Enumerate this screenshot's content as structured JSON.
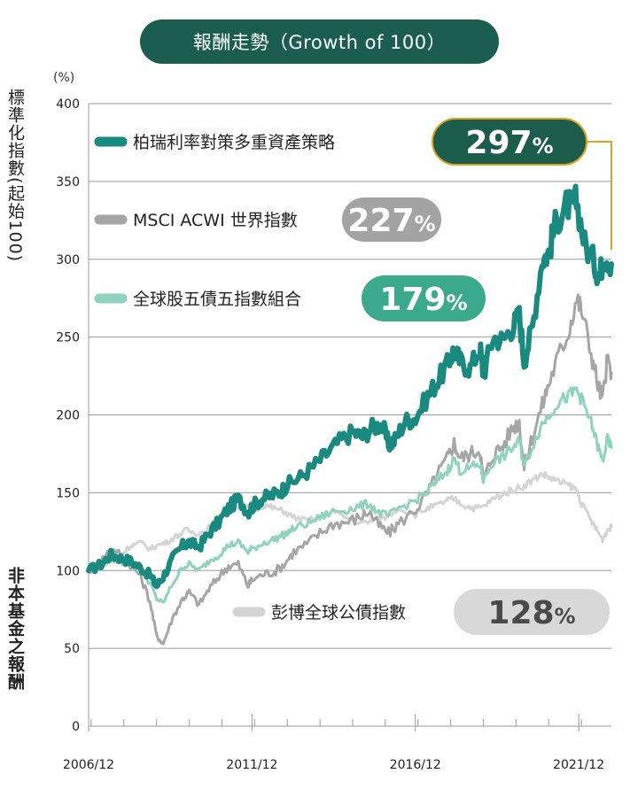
{
  "title": "報酬走勢（Growth of 100）",
  "y_unit": "(%)",
  "y_label": "標準化指數(起始100)",
  "side_note": "非本基金之報酬",
  "chart_data": {
    "type": "line",
    "title": "報酬走勢（Growth of 100）",
    "ylabel": "標準化指數(起始100)",
    "ylim": [
      0,
      400
    ],
    "yticks": [
      0,
      50,
      100,
      150,
      200,
      250,
      300,
      350,
      400
    ],
    "xlim": [
      2006.92,
      2022.92
    ],
    "xticks": [
      {
        "value": 2006.92,
        "label": "2006/12"
      },
      {
        "value": 2011.92,
        "label": "2011/12"
      },
      {
        "value": 2016.92,
        "label": "2016/12"
      },
      {
        "value": 2021.92,
        "label": "2021/12"
      }
    ],
    "grid": true,
    "legend": "inline",
    "series": [
      {
        "name": "柏瑞利率對策多重資產策略",
        "color": "#1a8a80",
        "final": "297%",
        "points": [
          [
            2006.92,
            100
          ],
          [
            2007.3,
            104
          ],
          [
            2007.6,
            110
          ],
          [
            2007.9,
            108
          ],
          [
            2008.2,
            106
          ],
          [
            2008.5,
            102
          ],
          [
            2008.8,
            97
          ],
          [
            2009.0,
            90
          ],
          [
            2009.2,
            96
          ],
          [
            2009.5,
            108
          ],
          [
            2009.8,
            116
          ],
          [
            2010.0,
            118
          ],
          [
            2010.3,
            115
          ],
          [
            2010.6,
            124
          ],
          [
            2010.9,
            131
          ],
          [
            2011.2,
            140
          ],
          [
            2011.5,
            146
          ],
          [
            2011.8,
            138
          ],
          [
            2011.92,
            141
          ],
          [
            2012.2,
            146
          ],
          [
            2012.5,
            148
          ],
          [
            2012.8,
            151
          ],
          [
            2013.0,
            155
          ],
          [
            2013.4,
            160
          ],
          [
            2013.8,
            167
          ],
          [
            2014.2,
            175
          ],
          [
            2014.6,
            183
          ],
          [
            2015.0,
            189
          ],
          [
            2015.3,
            186
          ],
          [
            2015.6,
            192
          ],
          [
            2015.9,
            194
          ],
          [
            2016.1,
            181
          ],
          [
            2016.3,
            184
          ],
          [
            2016.6,
            196
          ],
          [
            2016.92,
            198
          ],
          [
            2017.3,
            212
          ],
          [
            2017.6,
            222
          ],
          [
            2017.9,
            232
          ],
          [
            2018.1,
            242
          ],
          [
            2018.3,
            234
          ],
          [
            2018.6,
            230
          ],
          [
            2018.9,
            243
          ],
          [
            2019.0,
            226
          ],
          [
            2019.3,
            250
          ],
          [
            2019.6,
            248
          ],
          [
            2019.9,
            257
          ],
          [
            2020.1,
            264
          ],
          [
            2020.25,
            235
          ],
          [
            2020.5,
            256
          ],
          [
            2020.8,
            300
          ],
          [
            2021.0,
            304
          ],
          [
            2021.2,
            322
          ],
          [
            2021.5,
            335
          ],
          [
            2021.7,
            334
          ],
          [
            2021.85,
            338
          ],
          [
            2022.1,
            310
          ],
          [
            2022.4,
            298
          ],
          [
            2022.55,
            288
          ],
          [
            2022.7,
            304
          ],
          [
            2022.92,
            297
          ]
        ]
      },
      {
        "name": "MSCI ACWI 世界指數",
        "color": "#a5a5a5",
        "final": "227%",
        "points": [
          [
            2006.92,
            100
          ],
          [
            2007.3,
            106
          ],
          [
            2007.6,
            114
          ],
          [
            2007.9,
            110
          ],
          [
            2008.2,
            104
          ],
          [
            2008.5,
            97
          ],
          [
            2008.8,
            80
          ],
          [
            2009.0,
            58
          ],
          [
            2009.2,
            53
          ],
          [
            2009.5,
            70
          ],
          [
            2009.8,
            82
          ],
          [
            2010.0,
            86
          ],
          [
            2010.3,
            78
          ],
          [
            2010.6,
            88
          ],
          [
            2010.9,
            96
          ],
          [
            2011.2,
            103
          ],
          [
            2011.5,
            104
          ],
          [
            2011.8,
            90
          ],
          [
            2011.92,
            94
          ],
          [
            2012.3,
            98
          ],
          [
            2012.6,
            99
          ],
          [
            2012.9,
            104
          ],
          [
            2013.2,
            112
          ],
          [
            2013.6,
            117
          ],
          [
            2014.0,
            124
          ],
          [
            2014.4,
            130
          ],
          [
            2014.8,
            131
          ],
          [
            2015.2,
            134
          ],
          [
            2015.5,
            138
          ],
          [
            2015.8,
            129
          ],
          [
            2016.1,
            124
          ],
          [
            2016.4,
            130
          ],
          [
            2016.92,
            139
          ],
          [
            2017.3,
            150
          ],
          [
            2017.6,
            162
          ],
          [
            2017.9,
            172
          ],
          [
            2018.1,
            182
          ],
          [
            2018.3,
            172
          ],
          [
            2018.6,
            175
          ],
          [
            2018.9,
            178
          ],
          [
            2019.0,
            157
          ],
          [
            2019.3,
            175
          ],
          [
            2019.6,
            180
          ],
          [
            2019.9,
            192
          ],
          [
            2020.1,
            196
          ],
          [
            2020.25,
            166
          ],
          [
            2020.5,
            186
          ],
          [
            2020.8,
            206
          ],
          [
            2021.0,
            220
          ],
          [
            2021.3,
            238
          ],
          [
            2021.6,
            253
          ],
          [
            2021.85,
            275
          ],
          [
            2022.0,
            268
          ],
          [
            2022.3,
            240
          ],
          [
            2022.5,
            220
          ],
          [
            2022.65,
            210
          ],
          [
            2022.8,
            236
          ],
          [
            2022.92,
            227
          ]
        ]
      },
      {
        "name": "全球股五債五指數組合",
        "color": "#8fd3bf",
        "final": "179%",
        "points": [
          [
            2006.92,
            100
          ],
          [
            2007.3,
            103
          ],
          [
            2007.6,
            108
          ],
          [
            2007.9,
            106
          ],
          [
            2008.2,
            104
          ],
          [
            2008.5,
            100
          ],
          [
            2008.8,
            92
          ],
          [
            2009.0,
            82
          ],
          [
            2009.2,
            79
          ],
          [
            2009.5,
            92
          ],
          [
            2009.8,
            102
          ],
          [
            2010.0,
            104
          ],
          [
            2010.3,
            100
          ],
          [
            2010.6,
            106
          ],
          [
            2010.9,
            110
          ],
          [
            2011.2,
            116
          ],
          [
            2011.5,
            118
          ],
          [
            2011.8,
            112
          ],
          [
            2011.92,
            114
          ],
          [
            2012.3,
            118
          ],
          [
            2012.6,
            120
          ],
          [
            2012.9,
            123
          ],
          [
            2013.2,
            127
          ],
          [
            2013.6,
            130
          ],
          [
            2014.0,
            134
          ],
          [
            2014.4,
            138
          ],
          [
            2014.8,
            139
          ],
          [
            2015.2,
            141
          ],
          [
            2015.5,
            143
          ],
          [
            2015.8,
            137
          ],
          [
            2016.1,
            135
          ],
          [
            2016.4,
            140
          ],
          [
            2016.92,
            145
          ],
          [
            2017.3,
            151
          ],
          [
            2017.6,
            158
          ],
          [
            2017.9,
            164
          ],
          [
            2018.1,
            172
          ],
          [
            2018.3,
            164
          ],
          [
            2018.6,
            166
          ],
          [
            2018.9,
            168
          ],
          [
            2019.0,
            158
          ],
          [
            2019.3,
            170
          ],
          [
            2019.6,
            173
          ],
          [
            2019.9,
            179
          ],
          [
            2020.1,
            183
          ],
          [
            2020.25,
            167
          ],
          [
            2020.5,
            180
          ],
          [
            2020.8,
            194
          ],
          [
            2021.0,
            200
          ],
          [
            2021.3,
            208
          ],
          [
            2021.6,
            212
          ],
          [
            2021.85,
            216
          ],
          [
            2022.0,
            210
          ],
          [
            2022.3,
            195
          ],
          [
            2022.5,
            180
          ],
          [
            2022.65,
            170
          ],
          [
            2022.8,
            184
          ],
          [
            2022.92,
            179
          ]
        ]
      },
      {
        "name": "彭博全球公債指數",
        "color": "#d4d4d4",
        "final": "128%",
        "points": [
          [
            2006.92,
            100
          ],
          [
            2007.3,
            102
          ],
          [
            2007.6,
            106
          ],
          [
            2007.9,
            110
          ],
          [
            2008.2,
            116
          ],
          [
            2008.5,
            118
          ],
          [
            2008.8,
            114
          ],
          [
            2009.0,
            116
          ],
          [
            2009.3,
            118
          ],
          [
            2009.6,
            122
          ],
          [
            2009.9,
            126
          ],
          [
            2010.2,
            124
          ],
          [
            2010.5,
            125
          ],
          [
            2010.8,
            132
          ],
          [
            2011.2,
            138
          ],
          [
            2011.5,
            142
          ],
          [
            2011.8,
            140
          ],
          [
            2011.92,
            139
          ],
          [
            2012.3,
            142
          ],
          [
            2012.6,
            140
          ],
          [
            2012.9,
            138
          ],
          [
            2013.2,
            134
          ],
          [
            2013.6,
            132
          ],
          [
            2014.0,
            134
          ],
          [
            2014.4,
            138
          ],
          [
            2014.8,
            134
          ],
          [
            2015.2,
            130
          ],
          [
            2015.6,
            132
          ],
          [
            2016.0,
            134
          ],
          [
            2016.4,
            140
          ],
          [
            2016.92,
            136
          ],
          [
            2017.3,
            140
          ],
          [
            2017.6,
            142
          ],
          [
            2017.9,
            145
          ],
          [
            2018.1,
            146
          ],
          [
            2018.4,
            142
          ],
          [
            2018.7,
            140
          ],
          [
            2019.0,
            141
          ],
          [
            2019.3,
            146
          ],
          [
            2019.6,
            149
          ],
          [
            2019.9,
            152
          ],
          [
            2020.2,
            154
          ],
          [
            2020.5,
            158
          ],
          [
            2020.8,
            162
          ],
          [
            2021.0,
            160
          ],
          [
            2021.3,
            157
          ],
          [
            2021.6,
            155
          ],
          [
            2021.85,
            152
          ],
          [
            2022.0,
            143
          ],
          [
            2022.3,
            132
          ],
          [
            2022.5,
            125
          ],
          [
            2022.65,
            120
          ],
          [
            2022.8,
            126
          ],
          [
            2022.92,
            128
          ]
        ]
      }
    ]
  }
}
